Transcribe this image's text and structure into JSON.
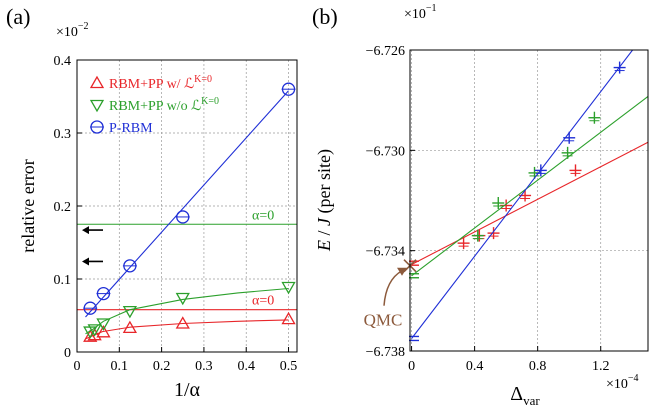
{
  "chart_data": [
    {
      "panel_label": "(a)",
      "type": "scatter",
      "xlabel": "1/α",
      "ylabel": "relative error",
      "y_multiplier": "×10",
      "y_multiplier_exp": "−2",
      "xlim": [
        0,
        0.52
      ],
      "ylim": [
        0,
        0.4
      ],
      "xticks": [
        0,
        0.1,
        0.2,
        0.3,
        0.4,
        0.5
      ],
      "xtick_labels": [
        "0",
        "0.1",
        "0.2",
        "0.3",
        "0.4",
        "0.5"
      ],
      "yticks": [
        0,
        0.1,
        0.2,
        0.3,
        0.4
      ],
      "ytick_labels": [
        "0",
        "0.1",
        "0.2",
        "0.3",
        "0.4"
      ],
      "grid": true,
      "legend_position": "top-left",
      "series": [
        {
          "name": "RBM+PP w/ ℒ",
          "legend_sup": "K=0",
          "color": "#e8262a",
          "marker": "triangle-up",
          "x": [
            0.03125,
            0.0417,
            0.0625,
            0.125,
            0.25,
            0.5
          ],
          "y": [
            0.021,
            0.023,
            0.027,
            0.033,
            0.039,
            0.045
          ],
          "fit_x": [
            0.02,
            0.06,
            0.125,
            0.25,
            0.38,
            0.5
          ],
          "fit_y": [
            0.018,
            0.028,
            0.034,
            0.039,
            0.042,
            0.044
          ]
        },
        {
          "name": "RBM+PP w/o ℒ",
          "legend_sup": "K=0",
          "color": "#2ca02c",
          "marker": "triangle-down",
          "x": [
            0.03125,
            0.0417,
            0.0625,
            0.125,
            0.25,
            0.5
          ],
          "y": [
            0.028,
            0.031,
            0.039,
            0.056,
            0.074,
            0.089
          ],
          "fit_x": [
            0.02,
            0.04,
            0.0625,
            0.125,
            0.25,
            0.38,
            0.5
          ],
          "fit_y": [
            0.025,
            0.032,
            0.042,
            0.058,
            0.072,
            0.081,
            0.087
          ]
        },
        {
          "name": "P-RBM",
          "color": "#1f2fd6",
          "marker": "circle",
          "x": [
            0.03125,
            0.0625,
            0.125,
            0.25,
            0.5
          ],
          "y": [
            0.06,
            0.08,
            0.118,
            0.185,
            0.36
          ],
          "fit_x": [
            0.02,
            0.5
          ],
          "fit_y": [
            0.048,
            0.358
          ]
        }
      ],
      "hlines": [
        {
          "y": 0.175,
          "color": "#2ca02c",
          "label": "α=0"
        },
        {
          "y": 0.058,
          "color": "#e8262a",
          "label": "α=0"
        }
      ],
      "arrows_y": [
        0.167,
        0.124
      ]
    },
    {
      "panel_label": "(b)",
      "type": "scatter",
      "xlabel": "Δ",
      "xlabel_sub": "var",
      "ylabel": "E / J (per site)",
      "x_multiplier": "×10",
      "x_multiplier_exp": "−4",
      "y_multiplier": "×10",
      "y_multiplier_exp": "−1",
      "xlim": [
        -0.01,
        1.5
      ],
      "ylim": [
        -6.738,
        -6.726
      ],
      "xticks": [
        0,
        0.4,
        0.8,
        1.2
      ],
      "xtick_labels": [
        "0",
        "0.4",
        "0.8",
        "1.2"
      ],
      "yticks": [
        -6.738,
        -6.734,
        -6.73,
        -6.726
      ],
      "ytick_labels": [
        "−6.738",
        "−6.734",
        "−6.730",
        "−6.726"
      ],
      "grid": true,
      "annotation": "QMC",
      "annotation_color": "#8c5a3c",
      "qmc_value": -6.7346,
      "series": [
        {
          "name": "red",
          "color": "#e8262a",
          "x": [
            0.33,
            0.43,
            0.52,
            0.6,
            0.72,
            1.04
          ],
          "y": [
            -6.7337,
            -6.7334,
            -6.7333,
            -6.7322,
            -6.7318,
            -6.7308
          ],
          "fit_x": [
            0,
            1.5
          ],
          "fit_y": [
            -6.73455,
            -6.72968
          ],
          "extrap_y": -6.7345
        },
        {
          "name": "green",
          "color": "#2ca02c",
          "x": [
            0.42,
            0.55,
            0.78,
            0.99,
            1.16
          ],
          "y": [
            -6.7334,
            -6.7321,
            -6.7309,
            -6.7301,
            -6.7287
          ],
          "fit_x": [
            0,
            1.5
          ],
          "fit_y": [
            -6.735,
            -6.72785
          ],
          "extrap_y": -6.735
        },
        {
          "name": "blue",
          "color": "#1f2fd6",
          "x": [
            0.82,
            1.0,
            1.32
          ],
          "y": [
            -6.7308,
            -6.7295,
            -6.7267
          ],
          "fit_x": [
            0,
            1.5
          ],
          "fit_y": [
            -6.7375,
            -6.7252
          ],
          "extrap_y": -6.7375
        }
      ]
    }
  ]
}
